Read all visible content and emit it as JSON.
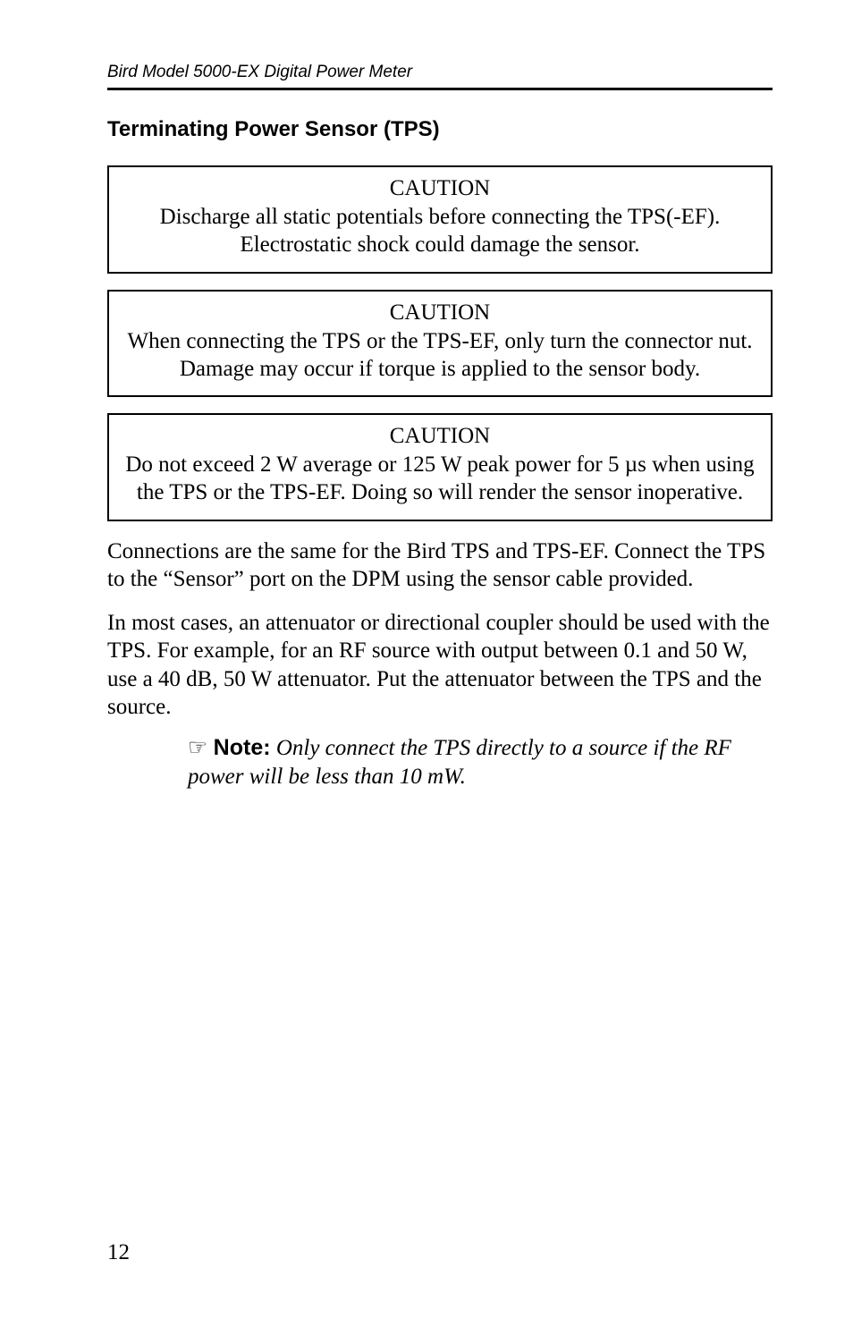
{
  "runningHeader": "Bird Model 5000-EX Digital Power Meter",
  "sectionTitle": "Terminating Power Sensor (TPS)",
  "cautions": [
    {
      "label": "CAUTION",
      "text": "Discharge all static potentials before connecting the TPS(-EF). Electrostatic shock could damage the sensor."
    },
    {
      "label": "CAUTION",
      "text": "When connecting the TPS or the TPS-EF, only turn the connector nut. Damage may occur if torque is applied to the sensor body."
    },
    {
      "label": "CAUTION",
      "text": "Do not exceed 2 W average or 125 W peak power for 5 µs when using the TPS or the TPS-EF. Doing so will render the sensor inoperative."
    }
  ],
  "paragraphs": [
    "Connections are the same for the Bird TPS and TPS-EF. Connect the TPS to the “Sensor” port on the DPM using the sensor cable provided.",
    "In most cases, an attenuator or directional coupler should be used with the TPS. For example, for an RF source with output between 0.1 and 50 W, use a 40 dB, 50 W attenuator. Put the attenuator between the TPS and the source."
  ],
  "note": {
    "hand": "☞",
    "label": "Note:",
    "text": "Only connect the TPS directly to a source if the RF power will be less than 10 mW."
  },
  "pageNumber": "12",
  "colors": {
    "text": "#000000",
    "background": "#ffffff",
    "border": "#000000"
  },
  "fonts": {
    "serif": "Georgia, 'Times New Roman', serif",
    "sans": "Arial, Helvetica, sans-serif",
    "bodySize": 25,
    "headerSize": 19,
    "titleSize": 24
  }
}
